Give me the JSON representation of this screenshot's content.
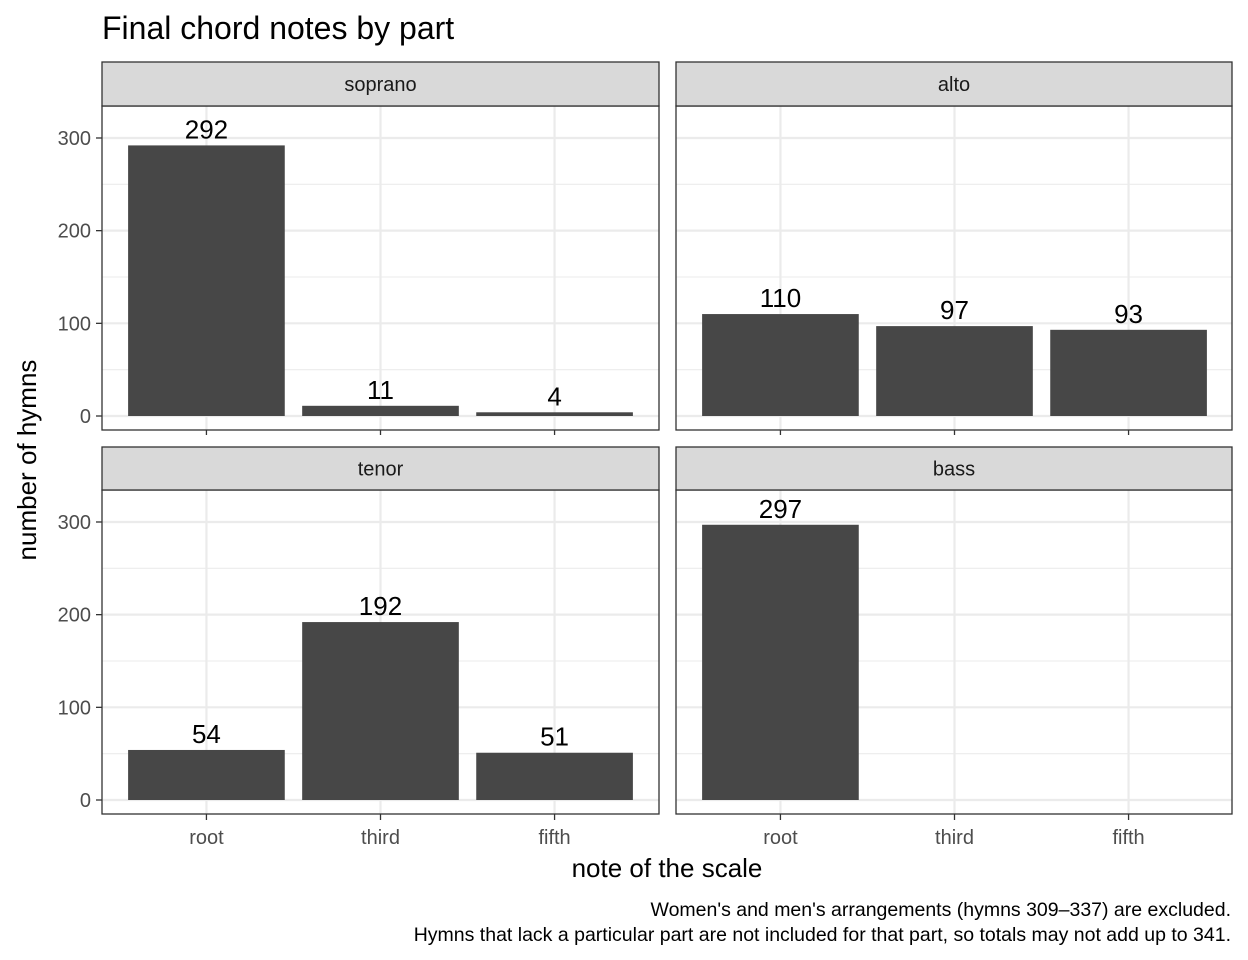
{
  "chart_data": {
    "type": "bar",
    "title": "Final chord notes by part",
    "xlabel": "note of the scale",
    "ylabel": "number of hymns",
    "categories": [
      "root",
      "third",
      "fifth"
    ],
    "ylim": [
      0,
      330
    ],
    "yticks": [
      0,
      100,
      200,
      300
    ],
    "grid": true,
    "bar_color": "#474747",
    "facets": [
      {
        "name": "soprano",
        "values": [
          292,
          11,
          4
        ]
      },
      {
        "name": "alto",
        "values": [
          110,
          97,
          93
        ]
      },
      {
        "name": "tenor",
        "values": [
          54,
          192,
          51
        ]
      },
      {
        "name": "bass",
        "values": [
          297,
          null,
          null
        ]
      }
    ],
    "caption": [
      "Women's and men's arrangements (hymns 309–337) are excluded.",
      "Hymns that lack a particular part are not included for that part, so totals may not add up to 341."
    ]
  }
}
